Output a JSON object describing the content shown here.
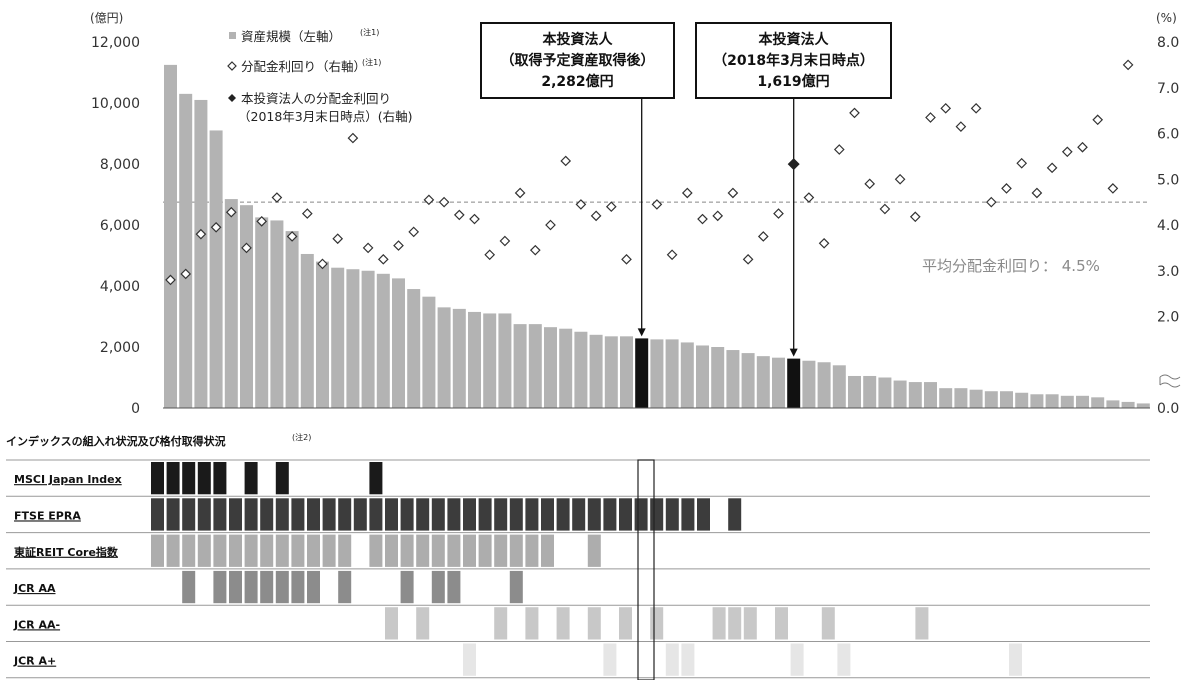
{
  "chart_data": {
    "type": "bar",
    "y_left": {
      "unit": "(億円)",
      "ylim": [
        0,
        12000
      ],
      "ticks": [
        "0",
        "2,000",
        "4,000",
        "6,000",
        "8,000",
        "10,000",
        "12,000"
      ]
    },
    "y_right": {
      "unit": "(%)",
      "ylim": [
        0,
        8
      ],
      "ticks": [
        "0.0",
        "2.0",
        "3.0",
        "4.0",
        "5.0",
        "6.0",
        "7.0",
        "8.0"
      ]
    },
    "legend": [
      {
        "name": "資産規模（左軸）",
        "note": "(注1)",
        "marker": "square"
      },
      {
        "name": "分配金利回り（右軸）",
        "note": "(注1)",
        "marker": "open-diamond"
      },
      {
        "name": "本投資法人の分配金利回り",
        "line2": "（2018年3月末日時点）(右軸)",
        "marker": "filled-diamond"
      }
    ],
    "average": {
      "value": 4.5,
      "label": "平均分配金利回り： 4.5%"
    },
    "callouts": [
      {
        "line1": "本投資法人",
        "line2": "（取得予定資産取得後）",
        "line3": "2,282億円",
        "index": 31
      },
      {
        "line1": "本投資法人",
        "line2": "（2018年3月末日時点）",
        "line3": "1,619億円",
        "index": 41
      }
    ],
    "highlight_yield": {
      "index": 41,
      "value": 5.33
    },
    "assets": [
      11250,
      10300,
      10100,
      9100,
      6850,
      6650,
      6250,
      6150,
      5800,
      5050,
      4800,
      4600,
      4550,
      4500,
      4400,
      4250,
      3900,
      3650,
      3300,
      3250,
      3150,
      3100,
      3100,
      2750,
      2750,
      2650,
      2600,
      2500,
      2400,
      2350,
      2350,
      2282,
      2250,
      2250,
      2150,
      2050,
      2000,
      1900,
      1800,
      1700,
      1650,
      1619,
      1550,
      1500,
      1400,
      1050,
      1050,
      1000,
      900,
      850,
      850,
      650,
      650,
      600,
      550,
      550,
      500,
      450,
      450,
      400,
      400,
      350,
      250,
      200,
      150
    ],
    "yields": [
      2.8,
      2.93,
      3.8,
      3.95,
      4.28,
      3.5,
      4.08,
      4.6,
      3.75,
      4.25,
      3.15,
      3.7,
      5.9,
      3.5,
      3.25,
      3.55,
      3.85,
      4.55,
      4.5,
      4.22,
      4.13,
      3.35,
      3.65,
      4.7,
      3.45,
      4.0,
      5.4,
      4.45,
      4.2,
      4.4,
      3.25,
      null,
      4.45,
      3.35,
      4.7,
      4.13,
      4.2,
      4.7,
      3.25,
      3.75,
      4.25,
      null,
      4.6,
      3.6,
      5.65,
      6.45,
      4.9,
      4.35,
      5.0,
      4.18,
      6.35,
      6.55,
      6.15,
      6.55,
      4.5,
      4.8,
      5.35,
      4.7,
      5.25,
      5.6,
      5.7,
      6.3,
      4.8,
      7.5,
      null
    ]
  },
  "index_section": {
    "title": "インデックスの組入れ状況及び格付取得状況",
    "note": "(注2)",
    "rows": [
      {
        "label": "MSCI Japan Index",
        "color": "#1a1a1a",
        "cells": [
          0,
          1,
          2,
          3,
          4,
          6,
          8,
          14
        ]
      },
      {
        "label": "FTSE EPRA",
        "color": "#3c3c3c",
        "cells": [
          0,
          1,
          2,
          3,
          4,
          5,
          6,
          7,
          8,
          9,
          10,
          11,
          12,
          13,
          14,
          15,
          16,
          17,
          18,
          19,
          20,
          21,
          22,
          23,
          24,
          25,
          26,
          27,
          28,
          29,
          30,
          31,
          32,
          33,
          34,
          35,
          37
        ]
      },
      {
        "label": "東証REIT Core指数",
        "color": "#adadad",
        "cells": [
          0,
          1,
          2,
          3,
          4,
          5,
          6,
          7,
          8,
          9,
          10,
          11,
          12,
          14,
          15,
          16,
          17,
          18,
          19,
          20,
          21,
          22,
          23,
          24,
          25,
          28
        ]
      },
      {
        "label": "JCR AA",
        "color": "#8c8c8c",
        "cells": [
          2,
          4,
          5,
          6,
          7,
          8,
          9,
          10,
          12,
          16,
          18,
          19,
          23
        ]
      },
      {
        "label": "JCR AA-",
        "color": "#c8c8c8",
        "cells": [
          15,
          17,
          22,
          24,
          26,
          28,
          30,
          32,
          36,
          37,
          38,
          40,
          43,
          49
        ]
      },
      {
        "label": "JCR A+",
        "color": "#e6e6e6",
        "cells": [
          20,
          29,
          33,
          34,
          41,
          44,
          55
        ]
      }
    ]
  }
}
